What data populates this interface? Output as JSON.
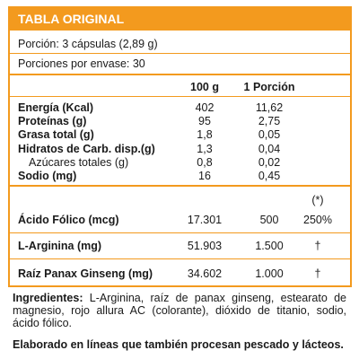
{
  "header": {
    "title": "TABLA ORIGINAL"
  },
  "serving": {
    "portion": "Porción: 3 cápsulas (2,89 g)",
    "servings_per_container": "Porciones por envase: 30"
  },
  "columns": {
    "per100": "100 g",
    "perPortion": "1 Porción"
  },
  "nutrients": [
    {
      "label": "Energía (Kcal)",
      "v100": "402",
      "vPortion": "11,62"
    },
    {
      "label": "Proteínas (g)",
      "v100": "95",
      "vPortion": "2,75"
    },
    {
      "label": "Grasa total (g)",
      "v100": "1,8",
      "vPortion": "0,05"
    },
    {
      "label": "Hidratos de Carb. disp.(g)",
      "v100": "1,3",
      "vPortion": "0,04"
    },
    {
      "label": "Azúcares totales (g)",
      "v100": "0,8",
      "vPortion": "0,02"
    },
    {
      "label": "Sodio (mg)",
      "v100": "16",
      "vPortion": "0,45"
    }
  ],
  "others": [
    {
      "label": "Ácido Fólico (mcg)",
      "v100": "17.301",
      "vPortion": "500",
      "note": "250%"
    },
    {
      "label": "L-Arginina (mg)",
      "v100": "51.903",
      "vPortion": "1.500",
      "note": "†"
    },
    {
      "label": "Raíz Panax Ginseng (mg)",
      "v100": "34.602",
      "vPortion": "1.000",
      "note": "†"
    }
  ],
  "asterisk": "(*)",
  "ingredients": {
    "label": "Ingredientes:",
    "text": "L-Arginina, raíz de panax ginseng, estearato de magnesio, rojo allura AC (colorante), dióxido de titanio, sodio, ácido fólico."
  },
  "allergen": "Elaborado en líneas que también procesan pescado y lácteos."
}
